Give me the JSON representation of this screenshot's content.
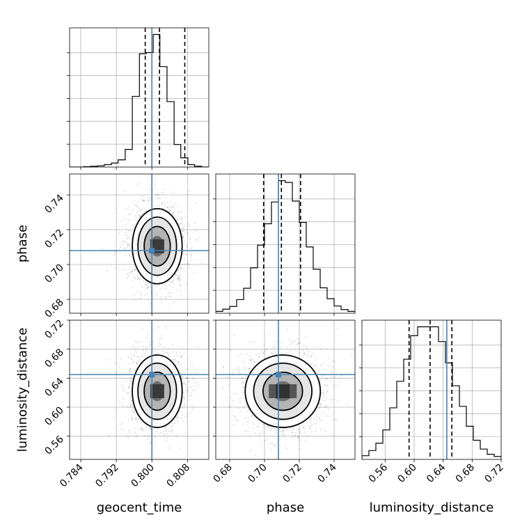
{
  "chart_data": {
    "type": "corner",
    "parameters": [
      "geocent_time",
      "phase",
      "luminosity_distance"
    ],
    "truths": {
      "geocent_time": 0.8,
      "phase": 0.708,
      "luminosity_distance": 0.645
    },
    "axes_ranges": {
      "geocent_time": [
        0.7815,
        0.8128
      ],
      "phase": [
        0.672,
        0.752
      ],
      "luminosity_distance": [
        0.528,
        0.72
      ]
    },
    "ticks": {
      "geocent_time": [
        "0.784",
        "0.792",
        "0.800",
        "0.808"
      ],
      "phase": [
        "0.68",
        "0.70",
        "0.72",
        "0.74"
      ],
      "luminosity_distance": [
        "0.56",
        "0.60",
        "0.64",
        "0.68",
        "0.72"
      ]
    },
    "quantiles": {
      "geocent_time": [
        0.7985,
        0.8017,
        0.8074
      ],
      "phase": [
        0.6995,
        0.7097,
        0.7207
      ],
      "luminosity_distance": [
        0.593,
        0.622,
        0.652
      ]
    },
    "histograms": {
      "geocent_time": {
        "edges": [
          0.7815,
          0.7831,
          0.7846,
          0.7862,
          0.7878,
          0.7893,
          0.7909,
          0.7924,
          0.794,
          0.7956,
          0.7972,
          0.7987,
          0.8003,
          0.8018,
          0.8034,
          0.805,
          0.8065,
          0.8081,
          0.8096,
          0.8112,
          0.8128
        ],
        "counts": [
          0,
          0,
          1,
          2,
          3,
          6,
          10,
          18,
          44,
          176,
          282,
          285,
          330,
          250,
          163,
          56,
          23,
          6,
          2,
          0
        ]
      },
      "phase": {
        "edges": [
          0.672,
          0.676,
          0.68,
          0.684,
          0.688,
          0.692,
          0.696,
          0.7,
          0.704,
          0.708,
          0.712,
          0.716,
          0.72,
          0.724,
          0.728,
          0.732,
          0.736,
          0.74,
          0.744,
          0.748,
          0.752
        ],
        "counts": [
          4,
          9,
          15,
          30,
          55,
          100,
          150,
          197,
          245,
          292,
          288,
          247,
          200,
          146,
          97,
          56,
          32,
          16,
          8,
          4
        ]
      },
      "luminosity_distance": {
        "edges": [
          0.528,
          0.5376,
          0.5472,
          0.5568,
          0.5664,
          0.576,
          0.5856,
          0.5952,
          0.6048,
          0.6144,
          0.624,
          0.6336,
          0.6432,
          0.6528,
          0.6624,
          0.672,
          0.6816,
          0.6912,
          0.7008,
          0.7104,
          0.72
        ],
        "counts": [
          5,
          12,
          22,
          40,
          70,
          106,
          136,
          168,
          180,
          180,
          180,
          160,
          131,
          100,
          72,
          45,
          26,
          14,
          7,
          4
        ]
      }
    },
    "joint_estimates": {
      "geocent_time_vs_phase": {
        "mean": [
          0.8012,
          0.7105
        ],
        "std": [
          0.0028,
          0.0108
        ]
      },
      "geocent_time_vs_luminosity_distance": {
        "mean": [
          0.8012,
          0.622
        ],
        "std": [
          0.0028,
          0.025
        ]
      },
      "phase_vs_luminosity_distance": {
        "mean": [
          0.7105,
          0.622
        ],
        "std": [
          0.0108,
          0.025
        ]
      }
    }
  }
}
